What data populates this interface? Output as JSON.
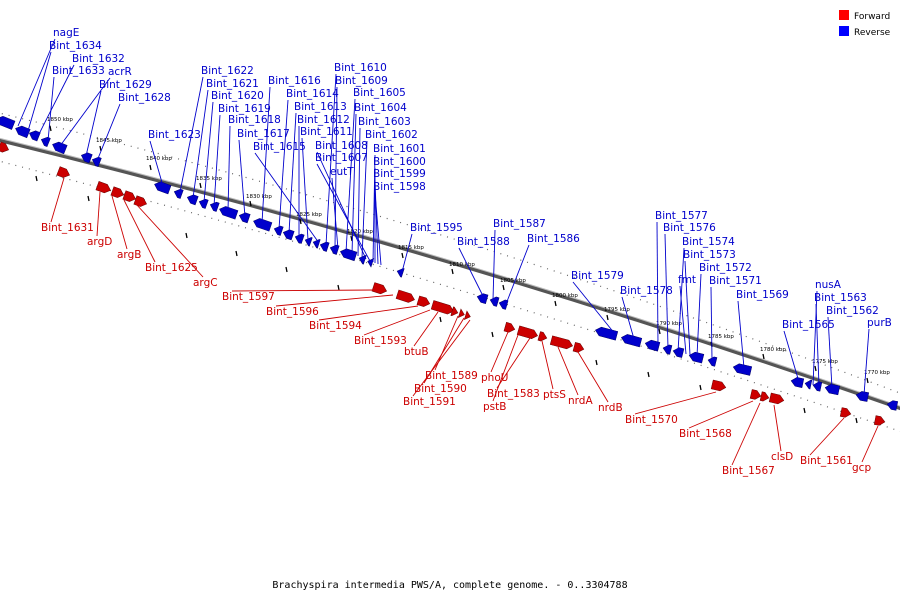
{
  "legend": {
    "forward_label": "Forward",
    "reverse_label": "Reverse",
    "forward_color": "#ff0000",
    "reverse_color": "#0000ff"
  },
  "caption": "Brachyspira intermedia PWS/A, complete genome. - 0..3304788",
  "ticks": [
    "1850 kbp",
    "1845 kbp",
    "1840 kbp",
    "1835 kbp",
    "1830 kbp",
    "1825 kbp",
    "1820 kbp",
    "1815 kbp",
    "1810 kbp",
    "1805 kbp",
    "1800 kbp",
    "1795 kbp",
    "1790 kbp",
    "1785 kbp",
    "1780 kbp",
    "1775 kbp",
    "1770 kbp"
  ],
  "reverse_labels": [
    "nagE",
    "Bint_1634",
    "Bint_1632",
    "Bint_1633",
    "acrR",
    "Bint_1629",
    "Bint_1628",
    "Bint_1623",
    "Bint_1622",
    "Bint_1621",
    "Bint_1620",
    "Bint_1619",
    "Bint_1618",
    "Bint_1617",
    "Bint_1616",
    "Bint_1614",
    "Bint_1613",
    "Bint_1612",
    "Bint_1611",
    "Bint_1615",
    "Bint_1610",
    "Bint_1609",
    "Bint_1605",
    "Bint_1604",
    "Bint_1603",
    "Bint_1602",
    "Bint_1608",
    "Bint_1607",
    "Bint_1601",
    "Bint_1600",
    "eutT",
    "Bint_1599",
    "Bint_1598",
    "Bint_1595",
    "Bint_1587",
    "Bint_1588",
    "Bint_1586",
    "Bint_1577",
    "Bint_1576",
    "Bint_1574",
    "Bint_1573",
    "Bint_1579",
    "fmt",
    "Bint_1572",
    "Bint_1578",
    "Bint_1571",
    "Bint_1569",
    "nusA",
    "Bint_1563",
    "Bint_1562",
    "Bint_1565",
    "purB"
  ],
  "forward_labels": [
    "Bint_1631",
    "argD",
    "argB",
    "Bint_1625",
    "argC",
    "Bint_1597",
    "Bint_1596",
    "Bint_1594",
    "Bint_1593",
    "btuB",
    "Bint_1589",
    "Bint_1590",
    "Bint_1591",
    "phoU",
    "pstB",
    "Bint_1583",
    "ptsS",
    "nrdA",
    "nrdB",
    "Bint_1570",
    "Bint_1568",
    "Bint_1567",
    "clsD",
    "Bint_1561",
    "gcp"
  ]
}
